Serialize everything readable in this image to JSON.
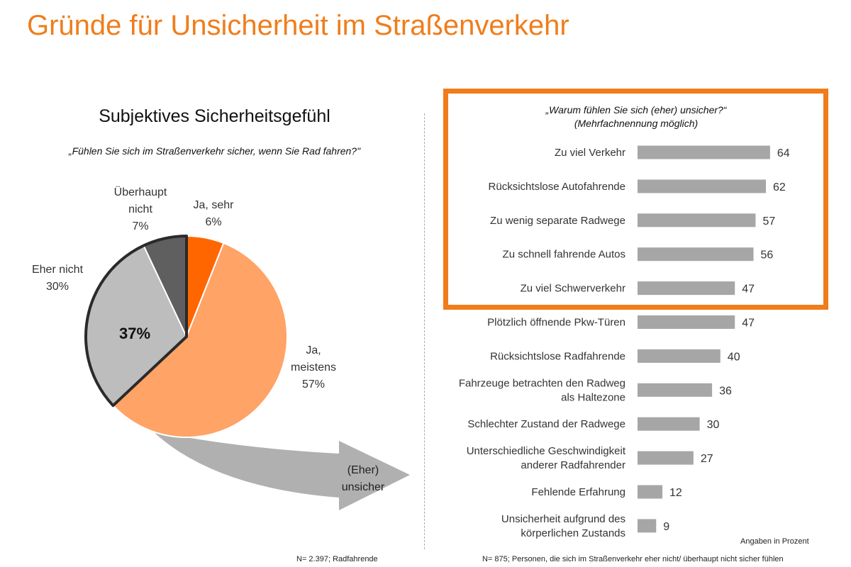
{
  "header": {
    "title": "Gründe für Unsicherheit im Straßenverkehr"
  },
  "left": {
    "title": "Subjektives Sicherheitsgefühl",
    "question": "„Fühlen Sie sich im Straßenverkehr sicher, wenn Sie Rad fahren?\"",
    "insecure_total": "37%",
    "arrow_label": [
      "(Eher)",
      "unsicher"
    ],
    "footnote": "N= 2.397; Radfahrende"
  },
  "right": {
    "question_line1": "„Warum fühlen Sie sich (eher) unsicher?“",
    "question_line2": "(Mehrfachnennung möglich)",
    "unit_note": "Angaben in Prozent",
    "footnote": "N= 875; Personen, die sich im Straßenverkehr eher nicht/ überhaupt nicht sicher fühlen"
  },
  "colors": {
    "accent": "#f07d1b",
    "ja_sehr": "#ff6600",
    "ja_meistens": "#ffa366",
    "eher_nicht": "#bdbdbd",
    "ueberhaupt_nicht": "#5f5f5f",
    "bar": "#a6a6a6"
  },
  "chart_data": [
    {
      "type": "pie",
      "title": "Subjektives Sicherheitsgefühl",
      "slices": [
        {
          "label": [
            "Ja, sehr"
          ],
          "value": 6,
          "display": "6%",
          "color": "#ff6600"
        },
        {
          "label": [
            "Ja,",
            "meistens"
          ],
          "value": 57,
          "display": "57%",
          "color": "#ffa366"
        },
        {
          "label": [
            "Eher nicht"
          ],
          "value": 30,
          "display": "30%",
          "color": "#bdbdbd"
        },
        {
          "label": [
            "Überhaupt",
            "nicht"
          ],
          "value": 7,
          "display": "7%",
          "color": "#5f5f5f"
        }
      ]
    },
    {
      "type": "bar",
      "orientation": "horizontal",
      "categories": [
        [
          "Zu viel Verkehr"
        ],
        [
          "Rücksichtslose Autofahrende"
        ],
        [
          "Zu wenig separate Radwege"
        ],
        [
          "Zu schnell fahrende Autos"
        ],
        [
          "Zu viel Schwerverkehr"
        ],
        [
          "Plötzlich öffnende Pkw-Türen"
        ],
        [
          "Rücksichtslose Radfahrende"
        ],
        [
          "Fahrzeuge betrachten den Radweg",
          "als Haltezone"
        ],
        [
          "Schlechter Zustand der Radwege"
        ],
        [
          "Unterschiedliche Geschwindigkeit",
          "anderer Radfahrender"
        ],
        [
          "Fehlende Erfahrung"
        ],
        [
          "Unsicherheit aufgrund des",
          "körperlichen Zustands"
        ]
      ],
      "values": [
        64,
        62,
        57,
        56,
        47,
        47,
        40,
        36,
        30,
        27,
        12,
        9
      ],
      "highlighted_count": 5
    }
  ]
}
